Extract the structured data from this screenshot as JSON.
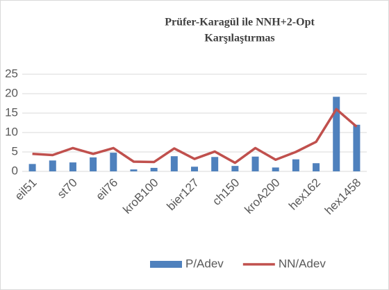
{
  "chart_data": {
    "type": "bar_line",
    "title": [
      "Prüfer-Karagül ile NNH+2-Opt",
      "Karşılaştırmas"
    ],
    "categories": [
      "eil51",
      null,
      "st70",
      null,
      "eil76",
      null,
      "kroB100",
      null,
      "bier127",
      null,
      "ch150",
      null,
      "kroA200",
      null,
      "hex162",
      null,
      "hex1458"
    ],
    "series": [
      {
        "name": "P/Adev",
        "type": "bar",
        "color": "#4f81bd",
        "values": [
          1.9,
          2.8,
          2.3,
          3.6,
          4.8,
          0.5,
          0.9,
          3.9,
          1.2,
          3.7,
          1.4,
          3.8,
          1.0,
          3.1,
          2.1,
          19.2,
          12.0
        ]
      },
      {
        "name": "NN/Adev",
        "type": "line",
        "color": "#c0504d",
        "values": [
          4.5,
          4.2,
          6.0,
          4.5,
          6.0,
          2.5,
          2.4,
          5.9,
          3.2,
          5.1,
          2.2,
          6.0,
          3.0,
          5.0,
          7.6,
          16.0,
          11.5
        ]
      }
    ],
    "ylim": [
      0,
      25
    ],
    "yticks": [
      0,
      5,
      10,
      15,
      20,
      25
    ],
    "grid": true,
    "legend": "bottom"
  }
}
